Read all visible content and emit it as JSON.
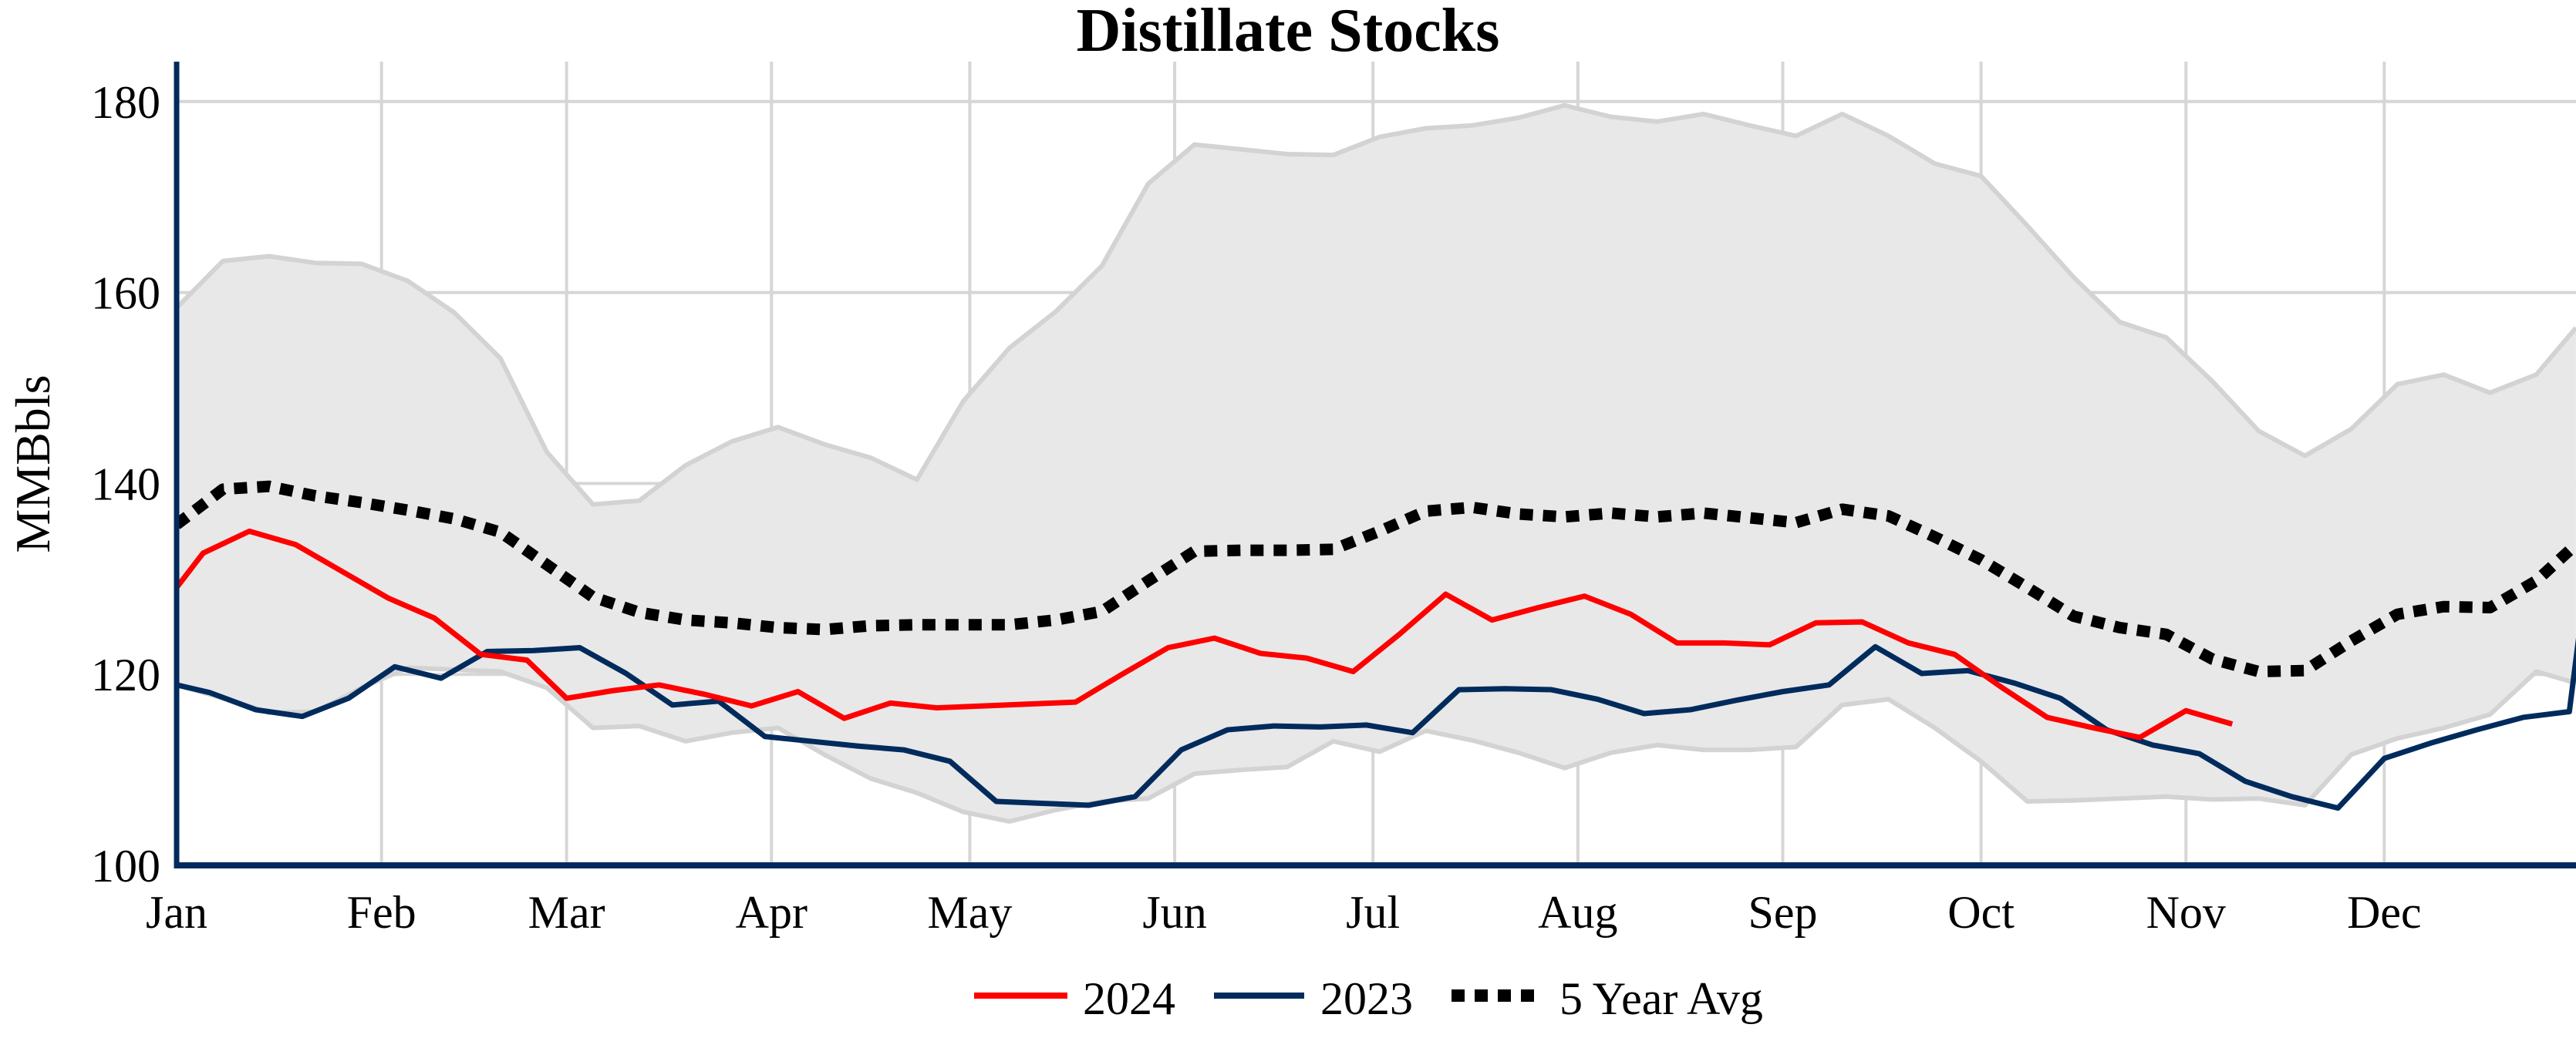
{
  "chart_data": {
    "type": "line",
    "title": "Distillate Stocks",
    "xlabel": "",
    "ylabel": "MMBbls",
    "ylim": [
      100,
      185
    ],
    "yticks": [
      100,
      120,
      140,
      160,
      180
    ],
    "xticks": [
      {
        "label": "Jan",
        "date": "01-01"
      },
      {
        "label": "Feb",
        "date": "02-01"
      },
      {
        "label": "Mar",
        "date": "03-01"
      },
      {
        "label": "Apr",
        "date": "04-01"
      },
      {
        "label": "May",
        "date": "05-01"
      },
      {
        "label": "Jun",
        "date": "06-01"
      },
      {
        "label": "Jul",
        "date": "07-01"
      },
      {
        "label": "Aug",
        "date": "08-01"
      },
      {
        "label": "Sep",
        "date": "09-01"
      },
      {
        "label": "Oct",
        "date": "10-01"
      },
      {
        "label": "Nov",
        "date": "11-01"
      },
      {
        "label": "Dec",
        "date": "12-01"
      }
    ],
    "grid": true,
    "legend_position": "bottom",
    "colors": {
      "2024": "#ff0000",
      "2023": "#002b5c",
      "5 Year Avg": "#000000",
      "range_fill": "#e8e8e8",
      "range_edge": "#d3d3d3",
      "grid": "#d6d6d6",
      "axis": "#002b5c"
    },
    "range_band": {
      "x": [
        "01-01",
        "01-08",
        "01-15",
        "01-22",
        "01-29",
        "02-05",
        "02-12",
        "02-19",
        "02-26",
        "03-05",
        "03-12",
        "03-19",
        "03-26",
        "04-02",
        "04-09",
        "04-16",
        "04-23",
        "04-30",
        "05-07",
        "05-14",
        "05-21",
        "05-28",
        "06-04",
        "06-11",
        "06-18",
        "06-25",
        "07-02",
        "07-09",
        "07-16",
        "07-23",
        "07-30",
        "08-06",
        "08-13",
        "08-20",
        "08-27",
        "09-03",
        "09-10",
        "09-17",
        "09-24",
        "10-01",
        "10-08",
        "10-15",
        "10-22",
        "10-29",
        "11-05",
        "11-12",
        "11-19",
        "11-26",
        "12-03",
        "12-10",
        "12-17",
        "12-24",
        "12-30"
      ],
      "max": [
        158.4,
        163.3,
        163.8,
        163.1,
        163.0,
        161.2,
        157.9,
        153.1,
        143.3,
        137.8,
        138.2,
        141.9,
        144.4,
        145.9,
        144.1,
        142.7,
        140.4,
        148.6,
        154.2,
        158.0,
        162.8,
        171.4,
        175.5,
        175.0,
        174.5,
        174.4,
        176.3,
        177.2,
        177.5,
        178.3,
        179.6,
        178.4,
        177.9,
        178.7,
        177.5,
        176.4,
        178.7,
        176.4,
        173.5,
        172.2,
        167.0,
        161.6,
        156.9,
        155.3,
        150.7,
        145.5,
        142.9,
        145.7,
        150.4,
        151.4,
        149.5,
        151.4,
        156.3
      ],
      "min": [
        118.9,
        117.5,
        116.0,
        116.1,
        118.6,
        120.7,
        120.5,
        120.3,
        118.6,
        114.4,
        114.6,
        113.0,
        113.9,
        114.4,
        111.6,
        109.1,
        107.6,
        105.6,
        104.6,
        105.8,
        106.7,
        107.0,
        109.6,
        110.0,
        110.3,
        113.0,
        111.9,
        114.1,
        113.1,
        111.8,
        110.2,
        111.8,
        112.6,
        112.1,
        112.1,
        112.4,
        116.8,
        117.4,
        114.4,
        110.9,
        106.7,
        106.8,
        107.0,
        107.2,
        106.9,
        107.0,
        106.3,
        111.6,
        113.3,
        114.4,
        115.8,
        120.3,
        119.1
      ]
    },
    "series": [
      {
        "name": "5 Year Avg",
        "style": "dotted",
        "x": [
          "01-01",
          "01-08",
          "01-15",
          "01-22",
          "01-29",
          "02-05",
          "02-12",
          "02-19",
          "02-26",
          "03-05",
          "03-12",
          "03-19",
          "03-26",
          "04-02",
          "04-09",
          "04-16",
          "04-23",
          "04-30",
          "05-07",
          "05-14",
          "05-21",
          "05-28",
          "06-04",
          "06-11",
          "06-18",
          "06-25",
          "07-02",
          "07-09",
          "07-16",
          "07-23",
          "07-30",
          "08-06",
          "08-13",
          "08-20",
          "08-27",
          "09-03",
          "09-10",
          "09-17",
          "09-24",
          "10-01",
          "10-08",
          "10-15",
          "10-22",
          "10-29",
          "11-05",
          "11-12",
          "11-19",
          "11-26",
          "12-03",
          "12-10",
          "12-17",
          "12-24",
          "12-30"
        ],
        "values": [
          135.7,
          139.4,
          139.7,
          138.7,
          138.0,
          137.2,
          136.3,
          134.9,
          131.5,
          128.1,
          126.5,
          125.7,
          125.4,
          124.9,
          124.7,
          125.1,
          125.2,
          125.2,
          125.2,
          125.7,
          126.6,
          129.8,
          132.9,
          133.0,
          133.0,
          133.1,
          135.0,
          137.1,
          137.5,
          136.8,
          136.5,
          136.9,
          136.5,
          136.9,
          136.4,
          135.9,
          137.3,
          136.6,
          134.4,
          132.0,
          129.1,
          126.1,
          124.9,
          124.2,
          121.6,
          120.3,
          120.4,
          123.5,
          126.3,
          127.1,
          127.0,
          129.8,
          133.6
        ]
      },
      {
        "name": "2023",
        "style": "solid",
        "x": [
          "01-01",
          "01-06",
          "01-13",
          "01-20",
          "01-27",
          "02-03",
          "02-10",
          "02-17",
          "02-24",
          "03-03",
          "03-10",
          "03-17",
          "03-24",
          "03-31",
          "04-07",
          "04-14",
          "04-21",
          "04-28",
          "05-05",
          "05-12",
          "05-19",
          "05-26",
          "06-02",
          "06-09",
          "06-16",
          "06-23",
          "06-30",
          "07-07",
          "07-14",
          "07-21",
          "07-28",
          "08-04",
          "08-11",
          "08-18",
          "08-25",
          "09-01",
          "09-08",
          "09-15",
          "09-22",
          "09-29",
          "10-06",
          "10-13",
          "10-20",
          "10-27",
          "11-03",
          "11-10",
          "11-17",
          "11-24",
          "12-01",
          "12-08",
          "12-15",
          "12-22",
          "12-29",
          "12-31"
        ],
        "values": [
          118.9,
          118.1,
          116.3,
          115.6,
          117.5,
          120.8,
          119.6,
          122.4,
          122.5,
          122.8,
          120.1,
          116.8,
          117.2,
          113.5,
          113.0,
          112.5,
          112.1,
          110.9,
          106.7,
          106.5,
          106.3,
          107.2,
          112.1,
          114.2,
          114.6,
          114.5,
          114.7,
          113.9,
          118.4,
          118.5,
          118.4,
          117.4,
          115.9,
          116.3,
          117.3,
          118.2,
          118.9,
          122.9,
          120.1,
          120.4,
          119.1,
          117.5,
          114.2,
          112.6,
          111.7,
          108.8,
          107.2,
          106.0,
          111.2,
          112.8,
          114.2,
          115.5,
          116.1,
          127.0
        ]
      },
      {
        "name": "2024",
        "style": "solid",
        "x": [
          "01-01",
          "01-05",
          "01-12",
          "01-19",
          "01-26",
          "02-02",
          "02-09",
          "02-16",
          "02-23",
          "03-01",
          "03-08",
          "03-15",
          "03-22",
          "03-29",
          "04-05",
          "04-12",
          "04-19",
          "04-26",
          "05-03",
          "05-10",
          "05-17",
          "05-24",
          "05-31",
          "06-07",
          "06-14",
          "06-21",
          "06-28",
          "07-05",
          "07-12",
          "07-19",
          "07-26",
          "08-02",
          "08-09",
          "08-16",
          "08-23",
          "08-30",
          "09-06",
          "09-13",
          "09-20",
          "09-27",
          "10-04",
          "10-11",
          "10-18",
          "10-25",
          "11-01",
          "11-08"
        ],
        "values": [
          129.1,
          132.7,
          135.0,
          133.6,
          130.8,
          128.0,
          125.9,
          122.1,
          121.5,
          117.5,
          118.3,
          118.9,
          117.9,
          116.7,
          118.2,
          115.4,
          117.0,
          116.5,
          116.7,
          116.9,
          117.1,
          120.0,
          122.8,
          123.8,
          122.2,
          121.7,
          120.3,
          124.2,
          128.4,
          125.7,
          127.0,
          128.2,
          126.3,
          123.3,
          123.3,
          123.1,
          125.4,
          125.5,
          123.3,
          122.1,
          118.7,
          115.5,
          114.4,
          113.4,
          116.2,
          114.8
        ]
      }
    ],
    "legend": [
      {
        "label": "2024",
        "style": "solid"
      },
      {
        "label": "2023",
        "style": "solid"
      },
      {
        "label": "5 Year Avg",
        "style": "dotted"
      }
    ]
  }
}
